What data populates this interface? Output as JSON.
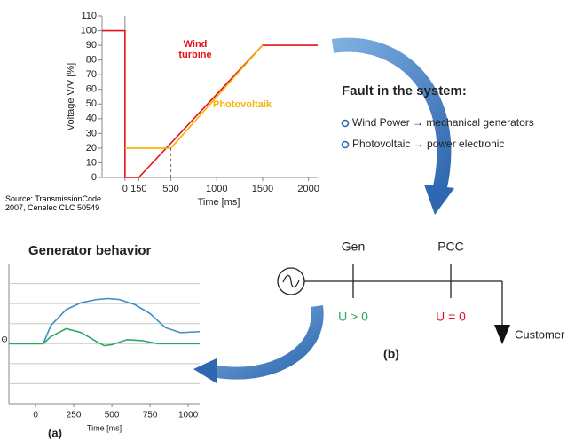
{
  "chart_data": [
    {
      "type": "line",
      "y_label": "Voltage V/V [%]",
      "x_label": "Time [ms]",
      "source": "Source: TransmissionCode 2007, Cenelec CLC 50549",
      "xlim": [
        -250,
        2100
      ],
      "ylim": [
        0,
        110
      ],
      "xticks": [
        0,
        150,
        500,
        1000,
        1500,
        2000
      ],
      "yticks": [
        0,
        10,
        20,
        30,
        40,
        50,
        60,
        70,
        80,
        90,
        100,
        110
      ],
      "grid": false,
      "series": [
        {
          "name": "Wind turbine",
          "color": "#e3121b",
          "x": [
            -250,
            0,
            0,
            150,
            1500,
            2100
          ],
          "values": [
            100,
            100,
            0,
            0,
            90,
            90
          ]
        },
        {
          "name": "Photovoltaik",
          "color": "#f4b400",
          "x": [
            0,
            500,
            1500
          ],
          "values": [
            20,
            20,
            90
          ]
        }
      ]
    },
    {
      "type": "line",
      "title": "Generator behavior",
      "y_label": "Θ",
      "x_label": "Time [ms]",
      "caption": "(a)",
      "xlim": [
        -175,
        1075
      ],
      "ylim": [
        -3,
        4
      ],
      "xticks": [
        0,
        250,
        500,
        750,
        1000
      ],
      "yticks": [
        -2,
        -1,
        0,
        1,
        2,
        3
      ],
      "grid": true,
      "series": [
        {
          "color": "#3b8fc6",
          "x": [
            -175,
            50,
            100,
            200,
            300,
            400,
            475,
            550,
            650,
            750,
            850,
            950,
            1075
          ],
          "values": [
            0,
            0,
            0.9,
            1.7,
            2.05,
            2.2,
            2.25,
            2.2,
            1.95,
            1.5,
            0.8,
            0.55,
            0.6
          ]
        },
        {
          "color": "#2aa866",
          "x": [
            -175,
            50,
            100,
            200,
            300,
            400,
            450,
            500,
            600,
            700,
            800,
            1075
          ],
          "values": [
            0,
            0,
            0.35,
            0.75,
            0.55,
            0.1,
            -0.1,
            -0.05,
            0.2,
            0.15,
            0,
            0
          ]
        }
      ]
    }
  ],
  "fault_panel": {
    "title": "Fault in the system:",
    "bullets": [
      "Wind Power → mechanical generators",
      "Photovoltaic → power electronic"
    ]
  },
  "network": {
    "nodes": [
      {
        "label": "Gen",
        "voltage": "U > 0"
      },
      {
        "label": "PCC",
        "voltage": "U = 0"
      }
    ],
    "load": "Customer",
    "caption": "(b)"
  }
}
